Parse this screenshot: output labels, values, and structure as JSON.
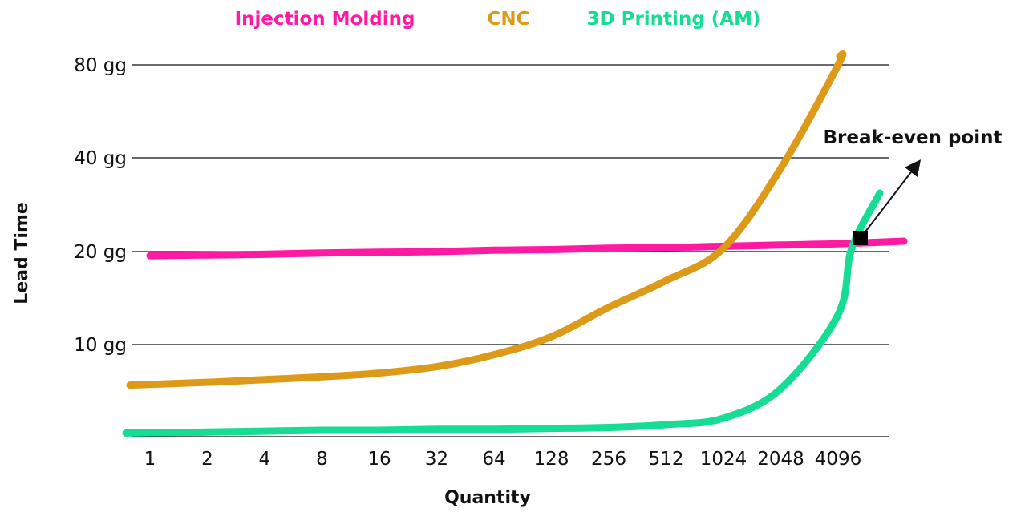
{
  "chart_data": {
    "type": "line",
    "title": "",
    "xlabel": "Quantity",
    "ylabel": "Lead Time",
    "x_scale": "log2",
    "y_scale": "categorical-nonlinear",
    "categories": [
      "1",
      "2",
      "4",
      "8",
      "16",
      "32",
      "64",
      "128",
      "256",
      "512",
      "1024",
      "2048",
      "4096"
    ],
    "y_ticks": [
      "10 gg",
      "20 gg",
      "40 gg",
      "80 gg"
    ],
    "grid": "horizontal",
    "legend_position": "top",
    "series": [
      {
        "name": "Injection Molding",
        "color": "#ff1aa3",
        "values": [
          19.4,
          19.5,
          19.6,
          19.8,
          19.9,
          20.0,
          20.2,
          20.3,
          20.5,
          20.6,
          20.8,
          21.0,
          21.2
        ]
      },
      {
        "name": "CNC",
        "color": "#dd9a18",
        "values": [
          5.6,
          5.9,
          6.2,
          6.5,
          6.9,
          7.6,
          8.9,
          10.6,
          13.2,
          16.1,
          20.5,
          37.0,
          80.0
        ]
      },
      {
        "name": "3D Printing (AM)",
        "color": "#17dc93",
        "values": [
          0.4,
          0.5,
          0.6,
          0.7,
          0.7,
          0.8,
          0.8,
          0.9,
          1.0,
          1.3,
          2.0,
          5.2,
          12.5
        ]
      }
    ],
    "annotations": [
      {
        "text": "Break-even point",
        "x": "4096+",
        "y": 21.2
      }
    ]
  }
}
